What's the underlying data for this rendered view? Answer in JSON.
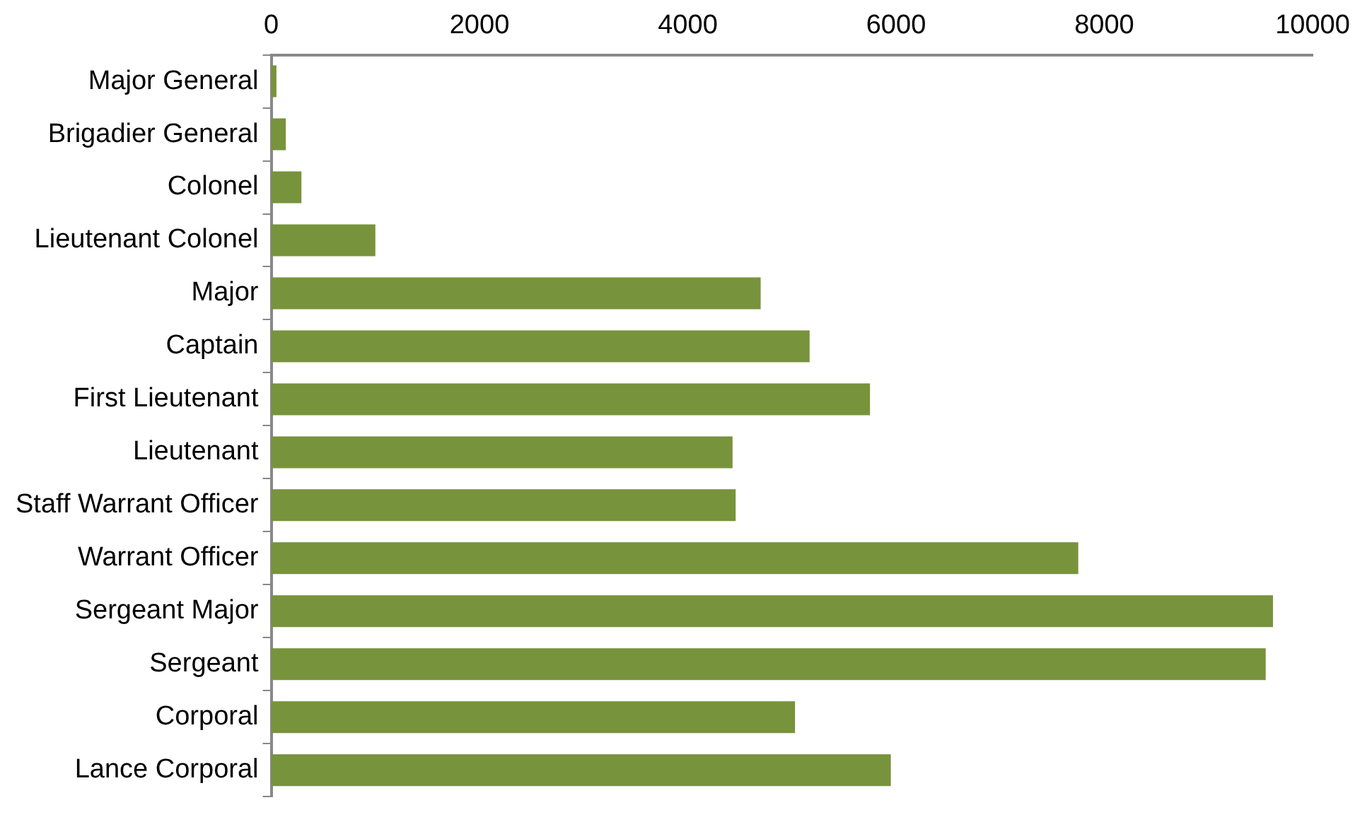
{
  "chart_data": {
    "type": "bar",
    "orientation": "horizontal",
    "categories": [
      "Major General",
      "Brigadier General",
      "Colonel",
      "Lieutenant Colonel",
      "Major",
      "Captain",
      "First Lieutenant",
      "Lieutenant",
      "Staff Warrant Officer",
      "Warrant Officer",
      "Sergeant Major",
      "Sergeant",
      "Corporal",
      "Lance Corporal"
    ],
    "values": [
      50,
      140,
      290,
      1000,
      4700,
      5170,
      5750,
      4430,
      4460,
      7750,
      9620,
      9550,
      5030,
      5950
    ],
    "color": "#77933c",
    "xlim": [
      0,
      10000
    ],
    "xticks": [
      0,
      2000,
      4000,
      6000,
      8000,
      10000
    ],
    "grid": false,
    "legend": false
  }
}
